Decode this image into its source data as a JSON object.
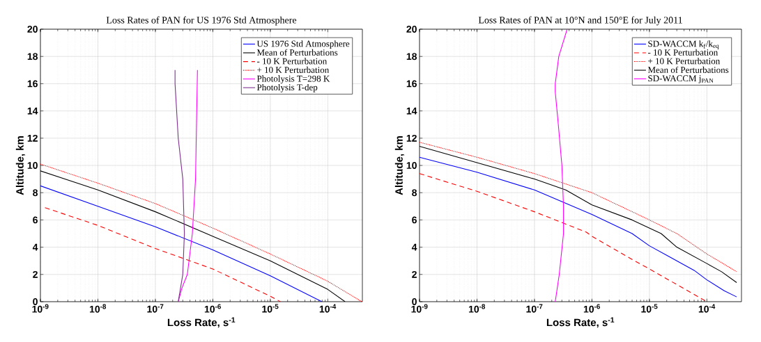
{
  "chart_data": [
    {
      "type": "line",
      "title": "Loss Rates of PAN for US 1976 Std Atmosphere",
      "xlabel": "Loss Rate, s$^{-1}$",
      "ylabel": "Altitude, km",
      "log": "x",
      "grid": true,
      "legend": "top right",
      "xlim": [
        1e-09,
        0.0004
      ],
      "ylim": [
        0,
        20
      ],
      "xticks": [
        {
          "value": 1e-09,
          "label": "10$^{-9}$"
        },
        {
          "value": 1e-08,
          "label": "10$^{-8}$"
        },
        {
          "value": 1e-07,
          "label": "10$^{-7}$"
        },
        {
          "value": 1e-06,
          "label": "10$^{-6}$"
        },
        {
          "value": 1e-05,
          "label": "10$^{-5}$"
        },
        {
          "value": 0.0001,
          "label": "10$^{-4}$"
        }
      ],
      "yticks": [
        0,
        2,
        4,
        6,
        8,
        10,
        12,
        14,
        16,
        18,
        20
      ],
      "series": [
        {
          "name": "US 1976 Std Atmosphere",
          "color": "#0000ff",
          "line_style": "solid",
          "x": [
            1e-09,
            1e-08,
            1e-07,
            1e-06,
            1e-05,
            7.9e-05
          ],
          "values": [
            8.5,
            7.0,
            5.5,
            3.8,
            1.9,
            0
          ]
        },
        {
          "name": "Mean of Perturbations",
          "color": "#000000",
          "line_style": "solid",
          "x": [
            1e-09,
            1e-08,
            1e-07,
            1e-06,
            1e-05,
            0.0001,
            0.0002
          ],
          "values": [
            9.6,
            8.2,
            6.6,
            4.8,
            3.0,
            0.9,
            0
          ]
        },
        {
          "name": "- 10 K Perturbation",
          "color": "#ff0000",
          "line_style": "dashed",
          "x": [
            1.2e-09,
            1e-08,
            1e-07,
            1e-06,
            1e-05,
            1.5e-05
          ],
          "values": [
            6.9,
            5.6,
            3.9,
            2.4,
            0.4,
            0
          ]
        },
        {
          "name": "+ 10 K Perturbation",
          "color": "#ff0000",
          "line_style": "dotted",
          "x": [
            1e-09,
            1e-08,
            1e-07,
            1e-06,
            1e-05,
            0.0001,
            0.00039
          ],
          "values": [
            10.1,
            8.7,
            7.2,
            5.4,
            3.5,
            1.5,
            0
          ]
        },
        {
          "name": "Photolysis T=298 K",
          "color": "#ff00ff",
          "line_style": "solid",
          "x": [
            2.5e-07,
            2.9e-07,
            3.6e-07,
            4.4e-07,
            5e-07,
            5.4e-07
          ],
          "values": [
            0,
            1,
            2,
            5,
            9,
            17
          ]
        },
        {
          "name": "Photolysis T-dep",
          "color": "#7e2f8e",
          "line_style": "solid",
          "x": [
            2.5e-07,
            3e-07,
            3.2e-07,
            3e-07,
            2.5e-07,
            2.2e-07,
            2.2e-07
          ],
          "values": [
            0,
            2,
            5,
            9,
            12,
            16,
            17
          ]
        }
      ]
    },
    {
      "type": "line",
      "title": "Loss Rates of PAN at 10°N and 150°E for July 2011",
      "xlabel": "Loss Rate, s$^{-1}$",
      "ylabel": "Altitude, km",
      "log": "x",
      "grid": true,
      "legend": "top right",
      "xlim": [
        1e-09,
        0.0004
      ],
      "ylim": [
        0,
        20
      ],
      "xticks": [
        {
          "value": 1e-09,
          "label": "10$^{-9}$"
        },
        {
          "value": 1e-08,
          "label": "10$^{-8}$"
        },
        {
          "value": 1e-07,
          "label": "10$^{-7}$"
        },
        {
          "value": 1e-06,
          "label": "10$^{-6}$"
        },
        {
          "value": 1e-05,
          "label": "10$^{-5}$"
        },
        {
          "value": 0.0001,
          "label": "10$^{-4}$"
        }
      ],
      "yticks": [
        0,
        2,
        4,
        6,
        8,
        10,
        12,
        14,
        16,
        18,
        20
      ],
      "series": [
        {
          "name": "SD-WACCM k$_{f}$/k$_{eq}$",
          "color": "#0000ff",
          "line_style": "solid",
          "x": [
            1e-09,
            1e-08,
            1e-07,
            1e-06,
            5e-06,
            1e-05,
            2e-05,
            6e-05,
            0.0001,
            0.0002,
            0.00033
          ],
          "values": [
            10.6,
            9.5,
            8.2,
            6.4,
            5.0,
            4.1,
            3.4,
            2.3,
            1.6,
            0.8,
            0.35
          ]
        },
        {
          "name": "- 10 K Perturbation",
          "color": "#ff0000",
          "line_style": "dashed",
          "x": [
            1e-09,
            1e-08,
            1e-07,
            8e-07,
            1e-06,
            5e-06,
            1e-05,
            0.0001
          ],
          "values": [
            9.4,
            8.1,
            6.6,
            5.1,
            4.8,
            3.1,
            2.4,
            0
          ]
        },
        {
          "name": "+ 10 K Perturbation",
          "color": "#ff0000",
          "line_style": "dotted",
          "x": [
            1e-09,
            1e-08,
            1e-07,
            1e-06,
            1e-05,
            3e-05,
            0.0001,
            0.00033
          ],
          "values": [
            11.7,
            10.6,
            9.4,
            8.0,
            6.0,
            5.0,
            3.5,
            2.2
          ]
        },
        {
          "name": "Mean of Perturbations",
          "color": "#000000",
          "line_style": "solid",
          "x": [
            1e-09,
            1e-08,
            1e-07,
            3.5e-07,
            1e-06,
            5e-06,
            1.6e-05,
            3e-05,
            0.0001,
            0.00018,
            0.00033
          ],
          "values": [
            11.4,
            10.2,
            9.0,
            8.2,
            7.1,
            6.0,
            5.0,
            4.0,
            2.8,
            2.2,
            1.4
          ]
        },
        {
          "name": "SD-WACCM j$_{PAN}$",
          "color": "#ff00ff",
          "line_style": "solid",
          "x": [
            2.3e-07,
            2.7e-07,
            3.2e-07,
            3.2e-07,
            3e-07,
            2.6e-07,
            2.3e-07,
            2.3e-07,
            2.65e-07,
            3.7e-07
          ],
          "values": [
            0,
            2,
            5,
            7,
            10,
            13,
            15.4,
            16,
            18,
            20
          ]
        }
      ]
    }
  ]
}
